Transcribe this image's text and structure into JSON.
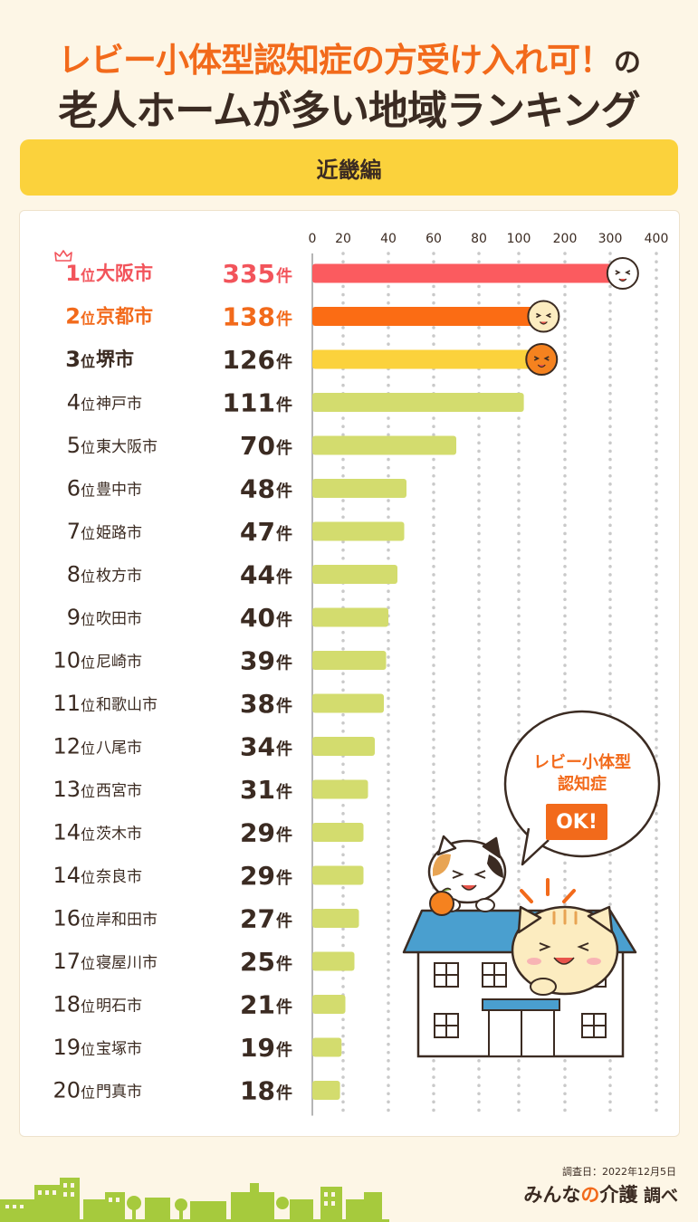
{
  "header": {
    "title_line1": "レビー小体型認知症の方受け入れ可！",
    "title_line1_suffix": "の",
    "title_line2": "老人ホームが多い地域ランキング",
    "region_label": "近畿編"
  },
  "chart_data": {
    "type": "bar",
    "orientation": "horizontal",
    "rank_suffix": "位",
    "value_suffix": "件",
    "x_ticks": [
      0,
      20,
      40,
      60,
      80,
      100,
      200,
      300,
      400
    ],
    "xlim": [
      0,
      400
    ],
    "grid": true,
    "rows": [
      {
        "rank": "1",
        "city": "大阪市",
        "value": 335
      },
      {
        "rank": "2",
        "city": "京都市",
        "value": 138
      },
      {
        "rank": "3",
        "city": "堺市",
        "value": 126
      },
      {
        "rank": "4",
        "city": "神戸市",
        "value": 111
      },
      {
        "rank": "5",
        "city": "東大阪市",
        "value": 70
      },
      {
        "rank": "6",
        "city": "豊中市",
        "value": 48
      },
      {
        "rank": "7",
        "city": "姫路市",
        "value": 47
      },
      {
        "rank": "8",
        "city": "枚方市",
        "value": 44
      },
      {
        "rank": "9",
        "city": "吹田市",
        "value": 40
      },
      {
        "rank": "10",
        "city": "尼崎市",
        "value": 39
      },
      {
        "rank": "11",
        "city": "和歌山市",
        "value": 38
      },
      {
        "rank": "12",
        "city": "八尾市",
        "value": 34
      },
      {
        "rank": "13",
        "city": "西宮市",
        "value": 31
      },
      {
        "rank": "14",
        "city": "茨木市",
        "value": 29
      },
      {
        "rank": "14",
        "city": "奈良市",
        "value": 29
      },
      {
        "rank": "16",
        "city": "岸和田市",
        "value": 27
      },
      {
        "rank": "17",
        "city": "寝屋川市",
        "value": 25
      },
      {
        "rank": "18",
        "city": "明石市",
        "value": 21
      },
      {
        "rank": "19",
        "city": "宝塚市",
        "value": 19
      },
      {
        "rank": "20",
        "city": "門真市",
        "value": 18
      }
    ],
    "colors": {
      "rank1": "#fb5b5f",
      "rank2": "#fb6c14",
      "rank3": "#fbd23c",
      "other": "#d3dc6e",
      "rank1_text": "#f2545b",
      "rank2_text": "#f26a1b",
      "rank3_text": "#3b2b22",
      "other_text": "#3b2b22"
    }
  },
  "bubble": {
    "line1": "レビー小体型",
    "line2": "認知症",
    "ok": "OK!"
  },
  "footer": {
    "survey_date": "調査日：2022年12月5日",
    "brand_part1": "みんな",
    "brand_part2": "の",
    "brand_part3": "介護",
    "brand_part4": " 調べ"
  }
}
